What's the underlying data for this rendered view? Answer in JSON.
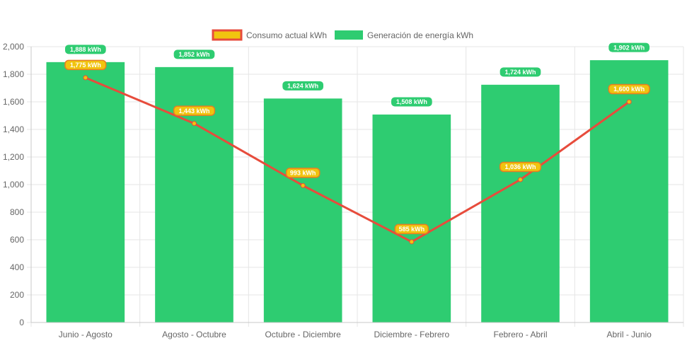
{
  "chart_data": {
    "type": "bar",
    "categories": [
      "Junio - Agosto",
      "Agosto - Octubre",
      "Octubre - Diciembre",
      "Diciembre - Febrero",
      "Febrero - Abril",
      "Abril - Junio"
    ],
    "series": [
      {
        "name": "Consumo actual kWh",
        "type": "line",
        "values": [
          1775,
          1443,
          993,
          585,
          1036,
          1600
        ],
        "labels": [
          "1,775 kWh",
          "1,443 kWh",
          "993 kWh",
          "585 kWh",
          "1,036 kWh",
          "1,600 kWh"
        ]
      },
      {
        "name": "Generación de energía kWh",
        "type": "bar",
        "values": [
          1888,
          1852,
          1624,
          1508,
          1724,
          1902
        ],
        "labels": [
          "1,888 kWh",
          "1,852 kWh",
          "1,624 kWh",
          "1,508 kWh",
          "1,724 kWh",
          "1,902 kWh"
        ]
      }
    ],
    "title": "",
    "xlabel": "",
    "ylabel": "",
    "ylim": [
      0,
      2000
    ],
    "yticks": [
      0,
      200,
      400,
      600,
      800,
      1000,
      1200,
      1400,
      1600,
      1800,
      2000
    ],
    "ytick_labels": [
      "0",
      "200",
      "400",
      "600",
      "800",
      "1,000",
      "1,200",
      "1,400",
      "1,600",
      "1,800",
      "2,000"
    ],
    "grid": true,
    "legend_position": "top",
    "colors": {
      "bar": "#2ecc71",
      "line": "#e74c3c",
      "line_fill": "#f1c40f",
      "grid": "#e5e5e5",
      "axis": "#c8c8c8",
      "text": "#666666"
    }
  }
}
